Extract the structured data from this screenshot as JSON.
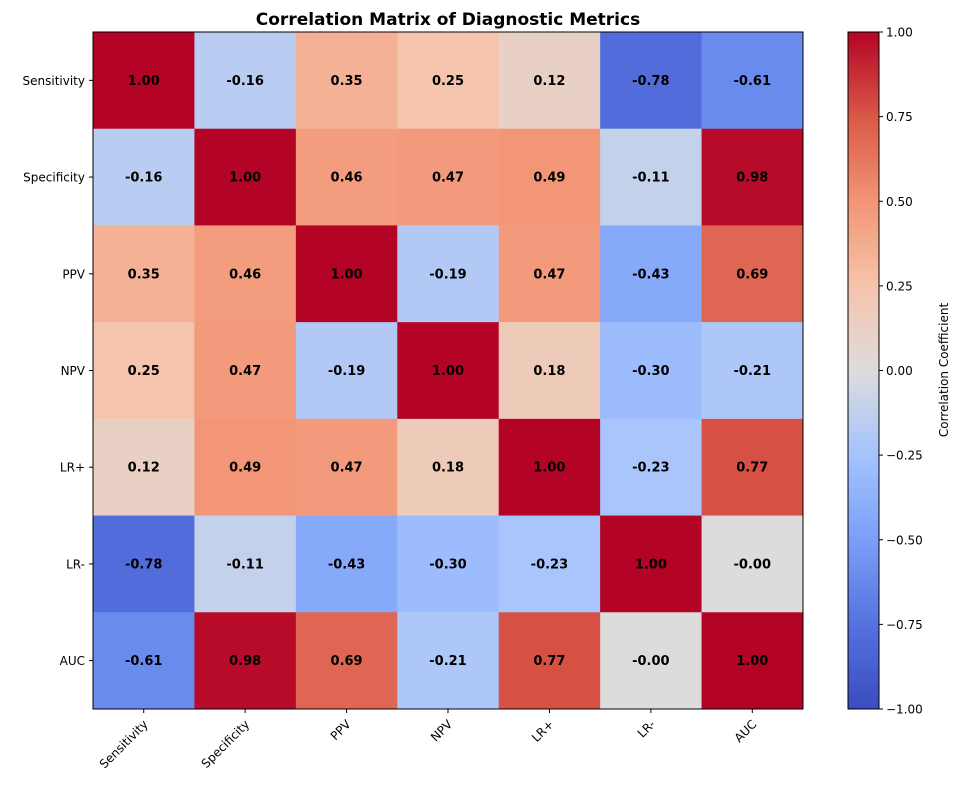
{
  "chart_data": {
    "type": "heatmap",
    "title": "Correlation Matrix of Diagnostic Metrics",
    "labels": [
      "Sensitivity",
      "Specificity",
      "PPV",
      "NPV",
      "LR+",
      "LR-",
      "AUC"
    ],
    "matrix": [
      [
        1.0,
        -0.16,
        0.35,
        0.25,
        0.12,
        -0.78,
        -0.61
      ],
      [
        -0.16,
        1.0,
        0.46,
        0.47,
        0.49,
        -0.11,
        0.98
      ],
      [
        0.35,
        0.46,
        1.0,
        -0.19,
        0.47,
        -0.43,
        0.69
      ],
      [
        0.25,
        0.47,
        -0.19,
        1.0,
        0.18,
        -0.3,
        -0.21
      ],
      [
        0.12,
        0.49,
        0.47,
        0.18,
        1.0,
        -0.23,
        0.77
      ],
      [
        -0.78,
        -0.11,
        -0.43,
        -0.3,
        -0.23,
        1.0,
        -0.0
      ],
      [
        -0.61,
        0.98,
        0.69,
        -0.21,
        0.77,
        -0.0,
        1.0
      ]
    ],
    "cell_labels": [
      [
        "1.00",
        "-0.16",
        "0.35",
        "0.25",
        "0.12",
        "-0.78",
        "-0.61"
      ],
      [
        "-0.16",
        "1.00",
        "0.46",
        "0.47",
        "0.49",
        "-0.11",
        "0.98"
      ],
      [
        "0.35",
        "0.46",
        "1.00",
        "-0.19",
        "0.47",
        "-0.43",
        "0.69"
      ],
      [
        "0.25",
        "0.47",
        "-0.19",
        "1.00",
        "0.18",
        "-0.30",
        "-0.21"
      ],
      [
        "0.12",
        "0.49",
        "0.47",
        "0.18",
        "1.00",
        "-0.23",
        "0.77"
      ],
      [
        "-0.78",
        "-0.11",
        "-0.43",
        "-0.30",
        "-0.23",
        "1.00",
        "-0.00"
      ],
      [
        "-0.61",
        "0.98",
        "0.69",
        "-0.21",
        "0.77",
        "-0.00",
        "1.00"
      ]
    ],
    "colormap": "coolwarm",
    "vmin": -1.0,
    "vmax": 1.0,
    "colorbar": {
      "label": "Correlation Coefficient",
      "ticks": [
        1.0,
        0.75,
        0.5,
        0.25,
        0.0,
        -0.25,
        -0.5,
        -0.75,
        -1.0
      ],
      "tick_labels": [
        "1.00",
        "0.75",
        "0.50",
        "0.25",
        "0.00",
        "−0.25",
        "−0.50",
        "−0.75",
        "−1.00"
      ]
    },
    "colormap_stops": [
      "#3b4cc0",
      "#5572df",
      "#7b9ff9",
      "#a5c3fe",
      "#dddcdc",
      "#f5c4ac",
      "#f39475",
      "#d95847",
      "#b40426"
    ]
  }
}
